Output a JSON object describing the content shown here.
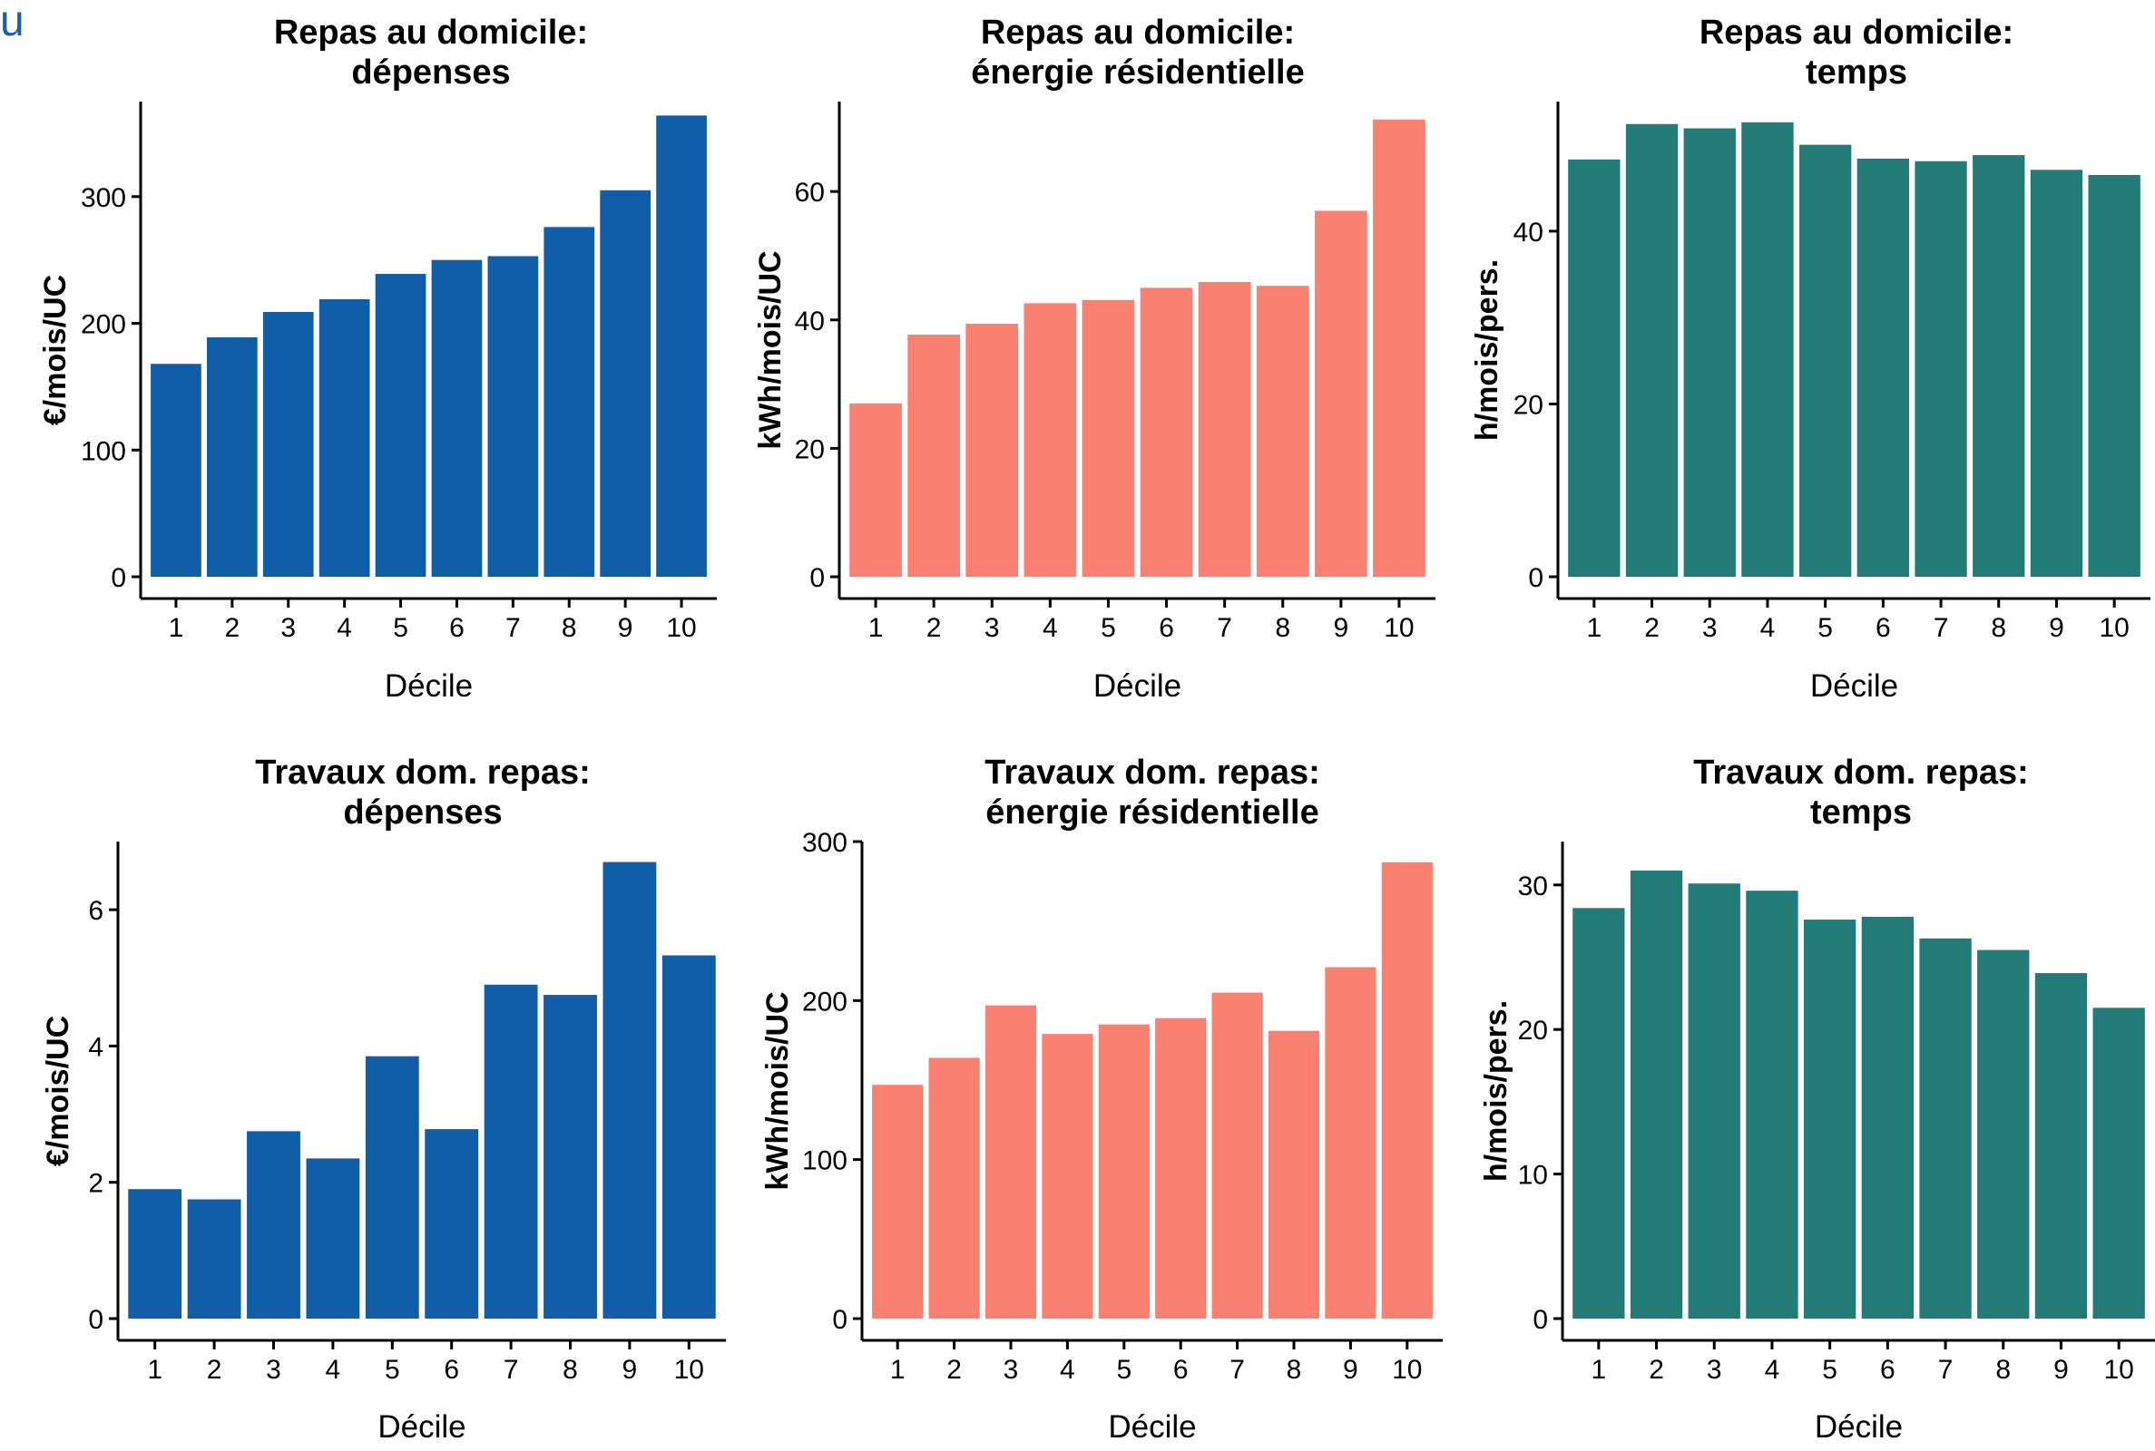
{
  "corner_glyph": "u",
  "chart_data": [
    {
      "type": "bar",
      "title_line1": "Repas au domicile:",
      "title_line2": "dépenses",
      "xlabel": "Décile",
      "ylabel": "€/mois/UC",
      "color": "#105EA8",
      "ylim": [
        0,
        375
      ],
      "yticks": [
        0,
        100,
        200,
        300
      ],
      "categories": [
        "1",
        "2",
        "3",
        "4",
        "5",
        "6",
        "7",
        "8",
        "9",
        "10"
      ],
      "values": [
        168,
        189,
        209,
        219,
        239,
        250,
        253,
        276,
        305,
        364
      ]
    },
    {
      "type": "bar",
      "title_line1": "Repas au domicile:",
      "title_line2": "énergie résidentielle",
      "xlabel": "Décile",
      "ylabel": "kWh/mois/UC",
      "color": "#FA8072",
      "ylim": [
        0,
        74
      ],
      "yticks": [
        0,
        20,
        40,
        60
      ],
      "categories": [
        "1",
        "2",
        "3",
        "4",
        "5",
        "6",
        "7",
        "8",
        "9",
        "10"
      ],
      "values": [
        27,
        37.7,
        39.4,
        42.6,
        43.1,
        45.0,
        45.9,
        45.3,
        57.0,
        71.2
      ]
    },
    {
      "type": "bar",
      "title_line1": "Repas au domicile:",
      "title_line2": "temps",
      "xlabel": "Décile",
      "ylabel": "h/mois/pers.",
      "color": "#227B77",
      "ylim": [
        0,
        55
      ],
      "yticks": [
        0,
        20,
        40
      ],
      "categories": [
        "1",
        "2",
        "3",
        "4",
        "5",
        "6",
        "7",
        "8",
        "9",
        "10"
      ],
      "values": [
        48.3,
        52.4,
        51.9,
        52.6,
        50.0,
        48.4,
        48.1,
        48.8,
        47.1,
        46.5
      ]
    },
    {
      "type": "bar",
      "title_line1": "Travaux dom. repas:",
      "title_line2": "dépenses",
      "xlabel": "Décile",
      "ylabel": "€/mois/UC",
      "color": "#105EA8",
      "ylim": [
        0,
        7
      ],
      "yticks": [
        0,
        2,
        4,
        6
      ],
      "categories": [
        "1",
        "2",
        "3",
        "4",
        "5",
        "6",
        "7",
        "8",
        "9",
        "10"
      ],
      "values": [
        1.9,
        1.75,
        2.75,
        2.35,
        3.85,
        2.78,
        4.9,
        4.75,
        6.7,
        5.33
      ]
    },
    {
      "type": "bar",
      "title_line1": "Travaux dom. repas:",
      "title_line2": "énergie résidentielle",
      "xlabel": "Décile",
      "ylabel": "kWh/mois/UC",
      "color": "#FA8072",
      "ylim": [
        0,
        300
      ],
      "yticks": [
        0,
        100,
        200,
        300
      ],
      "categories": [
        "1",
        "2",
        "3",
        "4",
        "5",
        "6",
        "7",
        "8",
        "9",
        "10"
      ],
      "values": [
        147,
        164,
        197,
        179,
        185,
        189,
        205,
        181,
        221,
        287
      ]
    },
    {
      "type": "bar",
      "title_line1": "Travaux dom. repas:",
      "title_line2": "temps",
      "xlabel": "Décile",
      "ylabel": "h/mois/pers.",
      "color": "#227B77",
      "ylim": [
        0,
        33
      ],
      "yticks": [
        0,
        10,
        20,
        30
      ],
      "categories": [
        "1",
        "2",
        "3",
        "4",
        "5",
        "6",
        "7",
        "8",
        "9",
        "10"
      ],
      "values": [
        28.4,
        31.0,
        30.1,
        29.6,
        27.6,
        27.8,
        26.3,
        25.5,
        23.9,
        21.5
      ]
    }
  ]
}
